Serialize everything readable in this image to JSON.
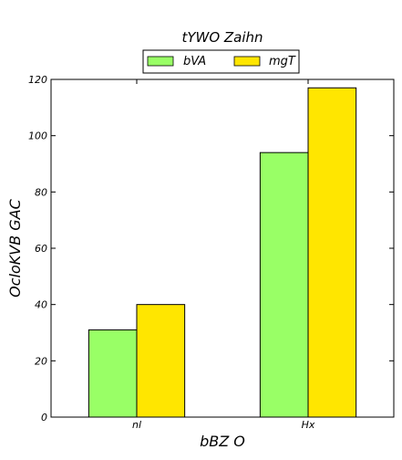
{
  "chart_data": {
    "type": "bar",
    "title": "tYWO Zaihn",
    "xlabel": "bBZ O",
    "ylabel": "OcloKVB GAC",
    "categories": [
      "nl",
      "Hx"
    ],
    "series": [
      {
        "name": "bVA",
        "values": [
          31,
          94
        ],
        "color": "#99ff66"
      },
      {
        "name": "mgT",
        "values": [
          40,
          117
        ],
        "color": "#ffe600"
      }
    ],
    "ylim": [
      0,
      120
    ],
    "yticks": [
      0,
      20,
      40,
      60,
      80,
      100,
      120
    ],
    "grid": false,
    "legend_position": "top-center"
  }
}
